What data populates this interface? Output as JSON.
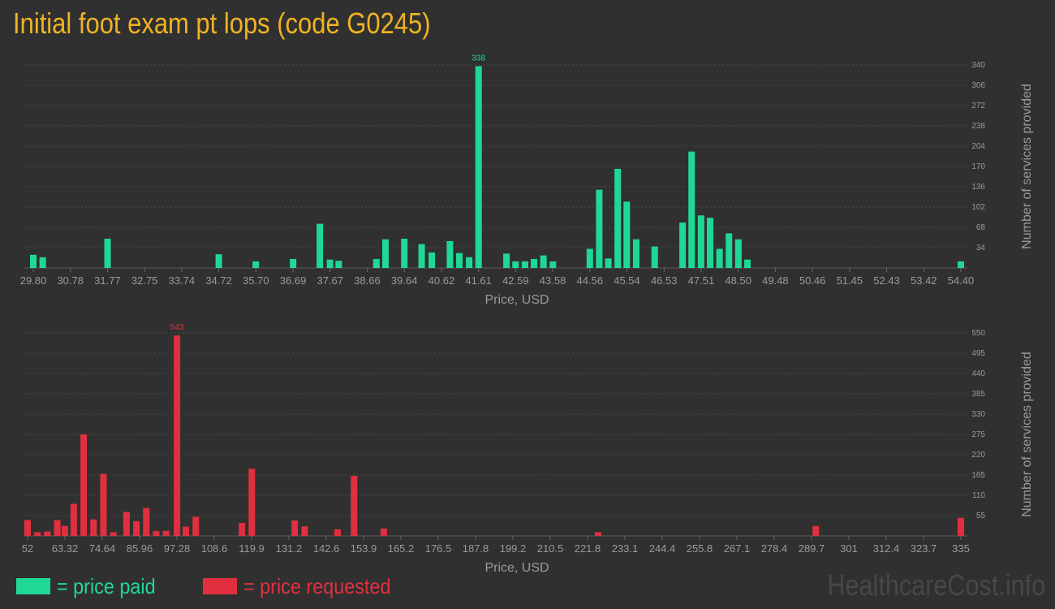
{
  "title": "Initial foot exam pt lops (code G0245)",
  "brand": "HealthcareCost.info",
  "colors": {
    "paid": "#20d896",
    "requested": "#e0303f",
    "title": "#f0b323"
  },
  "legend": [
    {
      "label": "= price paid",
      "color": "#20d896"
    },
    {
      "label": "= price requested",
      "color": "#e0303f"
    }
  ],
  "chart_data": [
    {
      "type": "bar",
      "name": "price paid",
      "color": "#20d896",
      "xlabel": "Price, USD",
      "ylabel": "Number of services provided",
      "xlim": [
        29.8,
        54.4
      ],
      "ylim": [
        0,
        340
      ],
      "grid": true,
      "x_ticks": [
        "29.80",
        "30.78",
        "31.77",
        "32.75",
        "33.74",
        "34.72",
        "35.70",
        "36.69",
        "37.67",
        "38.66",
        "39.64",
        "40.62",
        "41.61",
        "42.59",
        "43.58",
        "44.56",
        "45.54",
        "46.53",
        "47.51",
        "48.50",
        "49.48",
        "50.46",
        "51.45",
        "52.43",
        "53.42",
        "54.40"
      ],
      "y_ticks": [
        34,
        68,
        102,
        136,
        170,
        204,
        238,
        272,
        306,
        340
      ],
      "peak_label": "338",
      "bars": [
        [
          29.8,
          22
        ],
        [
          30.05,
          18
        ],
        [
          31.77,
          49
        ],
        [
          34.72,
          23
        ],
        [
          35.7,
          11
        ],
        [
          36.69,
          15
        ],
        [
          37.4,
          74
        ],
        [
          37.67,
          14
        ],
        [
          37.9,
          12
        ],
        [
          38.9,
          15
        ],
        [
          39.14,
          48
        ],
        [
          39.64,
          49
        ],
        [
          40.1,
          40
        ],
        [
          40.37,
          26
        ],
        [
          40.85,
          45
        ],
        [
          41.1,
          25
        ],
        [
          41.36,
          18
        ],
        [
          41.61,
          338
        ],
        [
          42.35,
          24
        ],
        [
          42.59,
          11
        ],
        [
          42.84,
          11
        ],
        [
          43.08,
          15
        ],
        [
          43.33,
          21
        ],
        [
          43.58,
          11
        ],
        [
          44.56,
          32
        ],
        [
          44.81,
          131
        ],
        [
          45.05,
          16
        ],
        [
          45.3,
          166
        ],
        [
          45.54,
          111
        ],
        [
          45.79,
          48
        ],
        [
          46.28,
          36
        ],
        [
          47.02,
          76
        ],
        [
          47.26,
          195
        ],
        [
          47.51,
          88
        ],
        [
          47.75,
          84
        ],
        [
          48.0,
          32
        ],
        [
          48.25,
          58
        ],
        [
          48.5,
          48
        ],
        [
          48.74,
          14
        ],
        [
          54.4,
          11
        ]
      ]
    },
    {
      "type": "bar",
      "name": "price requested",
      "color": "#e0303f",
      "xlabel": "Price, USD",
      "ylabel": "Number of services provided",
      "xlim": [
        52,
        335
      ],
      "ylim": [
        0,
        550
      ],
      "grid": true,
      "x_ticks": [
        "52",
        "63.32",
        "74.64",
        "85.96",
        "97.28",
        "108.6",
        "119.9",
        "131.2",
        "142.6",
        "153.9",
        "165.2",
        "176.5",
        "187.8",
        "199.2",
        "210.5",
        "221.8",
        "233.1",
        "244.4",
        "255.8",
        "267.1",
        "278.4",
        "289.7",
        "301",
        "312.4",
        "323.7",
        "335"
      ],
      "y_ticks": [
        55,
        110,
        165,
        220,
        275,
        330,
        385,
        440,
        495,
        550
      ],
      "peak_label": "543",
      "bars": [
        [
          52.0,
          43
        ],
        [
          55.0,
          10
        ],
        [
          58.0,
          12
        ],
        [
          61.0,
          43
        ],
        [
          63.3,
          27
        ],
        [
          66.0,
          87
        ],
        [
          69.0,
          275
        ],
        [
          72.0,
          45
        ],
        [
          75.0,
          168
        ],
        [
          78.0,
          10
        ],
        [
          82.0,
          65
        ],
        [
          85.0,
          40
        ],
        [
          88.0,
          76
        ],
        [
          91.0,
          13
        ],
        [
          94.0,
          14
        ],
        [
          97.3,
          543
        ],
        [
          100.0,
          25
        ],
        [
          103.0,
          52
        ],
        [
          117.0,
          35
        ],
        [
          120.0,
          182
        ],
        [
          133.0,
          42
        ],
        [
          136.0,
          26
        ],
        [
          146.0,
          18
        ],
        [
          151.0,
          163
        ],
        [
          160.0,
          20
        ],
        [
          225.0,
          10
        ],
        [
          291.0,
          27
        ],
        [
          335.0,
          49
        ]
      ]
    }
  ]
}
